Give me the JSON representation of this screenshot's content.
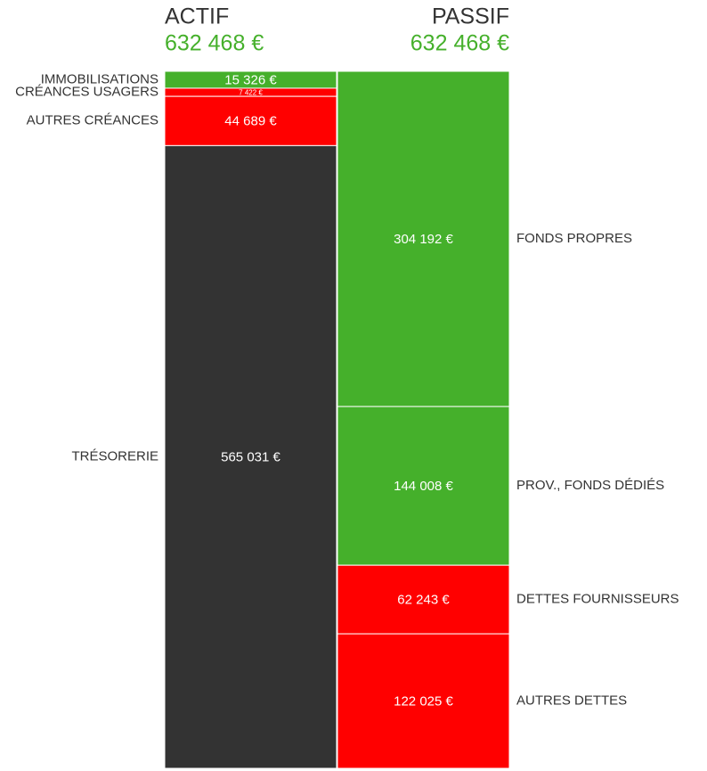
{
  "chart_data": {
    "type": "stacked_bar",
    "columns": [
      {
        "name": "ACTIF",
        "total": "632 468 €",
        "categories": [
          "IMMOBILISATIONS",
          "CRÉANCES USAGERS",
          "AUTRES CRÉANCES",
          "TRÉSORERIE"
        ],
        "values": [
          15326,
          7422,
          44689,
          565031
        ],
        "value_labels": [
          "15 326 €",
          "7 422 €",
          "44 689 €",
          "565 031 €"
        ],
        "colors": [
          "#45b02b",
          "#ff0000",
          "#ff0000",
          "#333333"
        ],
        "label_side": "left"
      },
      {
        "name": "PASSIF",
        "total": "632 468 €",
        "categories": [
          "FONDS PROPRES",
          "PROV., FONDS DÉDIÉS",
          "DETTES FOURNISSEURS",
          "AUTRES DETTES"
        ],
        "values": [
          304192,
          144008,
          62243,
          122025
        ],
        "value_labels": [
          "304 192 €",
          "144 008 €",
          "62 243 €",
          "122 025 €"
        ],
        "colors": [
          "#45b02b",
          "#45b02b",
          "#ff0000",
          "#ff0000"
        ],
        "label_side": "right"
      }
    ]
  }
}
